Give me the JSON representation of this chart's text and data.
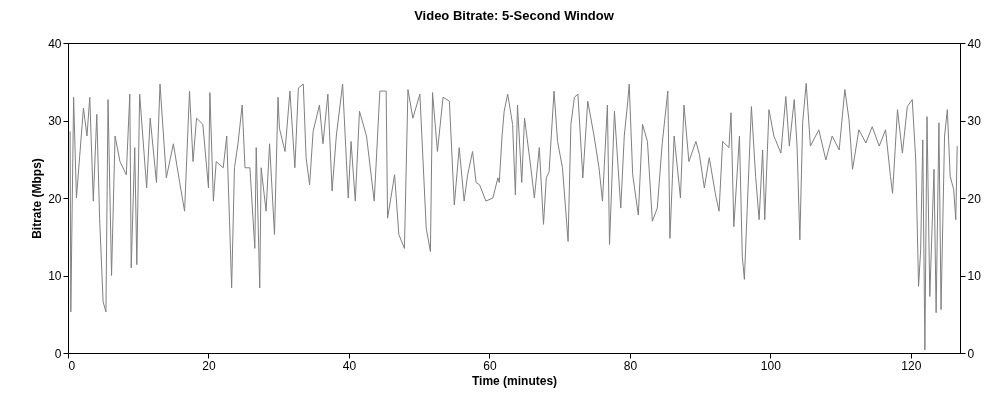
{
  "chart_data": {
    "type": "line",
    "title": "Video Bitrate: 5-Second Window",
    "xlabel": "Time (minutes)",
    "ylabel": "Bitrate (Mbps)",
    "xlim": [
      0,
      127
    ],
    "xticks": [
      0,
      20,
      40,
      60,
      80,
      100,
      120
    ],
    "ylim": [
      0,
      40
    ],
    "yticks": [
      0,
      10,
      20,
      30,
      40
    ],
    "y2lim": [
      0,
      40
    ],
    "y2ticks": [
      0,
      10,
      20,
      30,
      40
    ],
    "grid": false,
    "legend": false,
    "marker": "none",
    "line_style": "solid",
    "series": [
      {
        "color": "#808080",
        "x": [
          0.3,
          0.4,
          0.8,
          1.2,
          2.2,
          2.7,
          3.1,
          3.6,
          4.1,
          4.5,
          5.0,
          5.4,
          5.7,
          6.2,
          6.7,
          7.4,
          8.3,
          8.8,
          9.0,
          9.5,
          9.8,
          10.2,
          11.2,
          11.7,
          12.6,
          13.1,
          13.6,
          14.0,
          15.0,
          15.9,
          16.6,
          17.3,
          17.8,
          18.3,
          19.2,
          20.0,
          20.2,
          20.7,
          21.1,
          22.1,
          22.6,
          23.0,
          23.3,
          23.7,
          24.2,
          24.8,
          25.2,
          25.9,
          26.6,
          26.8,
          27.3,
          27.5,
          28.2,
          28.7,
          29.4,
          29.9,
          30.1,
          30.9,
          31.6,
          32.3,
          32.8,
          33.5,
          33.9,
          34.4,
          34.9,
          35.8,
          36.3,
          37.0,
          37.6,
          38.2,
          39.1,
          39.9,
          40.3,
          40.9,
          41.5,
          42.5,
          43.6,
          44.4,
          45.3,
          45.5,
          46.5,
          47.1,
          47.9,
          48.4,
          49.1,
          50.1,
          51.0,
          51.6,
          51.9,
          52.6,
          53.4,
          54.3,
          55.0,
          55.7,
          56.4,
          56.9,
          57.6,
          58.1,
          58.6,
          59.5,
          60.5,
          61.2,
          61.4,
          61.8,
          62.1,
          62.6,
          63.3,
          63.7,
          64.0,
          64.6,
          65.0,
          65.9,
          66.4,
          67.1,
          67.7,
          68.1,
          68.5,
          69.2,
          69.7,
          70.4,
          71.2,
          71.6,
          72.1,
          72.6,
          73.3,
          74.0,
          74.9,
          75.6,
          76.1,
          76.8,
          77.1,
          77.8,
          78.7,
          79.2,
          79.7,
          79.9,
          80.4,
          81.2,
          81.8,
          82.5,
          83.2,
          83.9,
          84.6,
          85.4,
          85.7,
          86.3,
          87.2,
          87.7,
          88.4,
          89.4,
          89.9,
          90.6,
          91.3,
          92.2,
          92.7,
          93.2,
          94.1,
          94.4,
          94.8,
          95.6,
          96.0,
          96.3,
          96.7,
          97.3,
          97.9,
          98.4,
          98.9,
          99.2,
          99.8,
          100.5,
          101.5,
          102.2,
          102.7,
          103.4,
          103.8,
          104.2,
          104.6,
          105.1,
          105.7,
          106.9,
          107.9,
          108.8,
          109.8,
          110.6,
          111.2,
          111.7,
          112.6,
          113.6,
          114.5,
          115.5,
          116.4,
          117.1,
          117.4,
          118.1,
          118.8,
          119.5,
          120.2,
          120.7,
          121.1,
          121.4,
          121.7,
          122.0,
          122.3,
          122.7,
          123.3,
          123.6,
          124.0,
          124.3,
          124.8,
          125.2,
          125.6,
          126.1,
          126.4,
          126.6
        ],
        "values": [
          28.6,
          5.3,
          33,
          20,
          31.6,
          28,
          33,
          19.6,
          30.8,
          17.4,
          6.6,
          5.3,
          32.7,
          10,
          28,
          24.7,
          23,
          33.4,
          11,
          26.5,
          11.4,
          33.4,
          21.3,
          30.3,
          22,
          34.7,
          28,
          22.6,
          27,
          22,
          18.3,
          33.8,
          24.7,
          30.3,
          29.5,
          21.3,
          33.6,
          19.6,
          24.7,
          23.9,
          28,
          17,
          8.4,
          23.9,
          27,
          32,
          23.9,
          23.9,
          13.5,
          26.5,
          8.4,
          23.9,
          18.3,
          27,
          15.3,
          33,
          29,
          26,
          33.8,
          23.9,
          34.2,
          34.7,
          25.2,
          21.7,
          28.6,
          32,
          27,
          33.4,
          20.9,
          28,
          34.7,
          20,
          27.3,
          19.6,
          31.2,
          28,
          19.6,
          33.8,
          33.8,
          17.4,
          23,
          15.3,
          13.5,
          34,
          30.3,
          33.4,
          16.1,
          13.1,
          33.6,
          26,
          33,
          32.5,
          19.1,
          26.5,
          19.6,
          23,
          26,
          22,
          21.7,
          19.6,
          20,
          22.6,
          22,
          28,
          31.2,
          33.4,
          29.5,
          20.4,
          32,
          22,
          30.3,
          23.9,
          20,
          26.5,
          16.6,
          22.6,
          23.4,
          33.8,
          27.3,
          23.9,
          14.4,
          29.5,
          33,
          33.4,
          22.6,
          32.5,
          28,
          23.9,
          19.6,
          32,
          14,
          31.2,
          18.7,
          28,
          32.5,
          34.7,
          23,
          17.8,
          29.5,
          27.3,
          17,
          18.7,
          27,
          33.8,
          14.8,
          28,
          20,
          32,
          24.7,
          27.3,
          25.6,
          21.3,
          25.2,
          20.4,
          18.3,
          27.3,
          26.5,
          31,
          16.3,
          28,
          12.5,
          9.5,
          18.5,
          31.8,
          22.8,
          17.2,
          26.2,
          17.2,
          31.4,
          28,
          25.8,
          33.1,
          26.7,
          32.7,
          26.7,
          14.6,
          29.7,
          34.8,
          26.7,
          28.8,
          24.9,
          28,
          26.2,
          34,
          30.1,
          23.7,
          28.8,
          27.1,
          29.2,
          26.7,
          28.8,
          22.8,
          20.6,
          31.4,
          25.8,
          31.8,
          32.7,
          24.9,
          8.6,
          13.3,
          27.5,
          0.4,
          30.5,
          7.3,
          23.7,
          5.2,
          29.7,
          5.6,
          28,
          31.4,
          22.8,
          21.1,
          17.2,
          26.7
        ]
      }
    ]
  }
}
